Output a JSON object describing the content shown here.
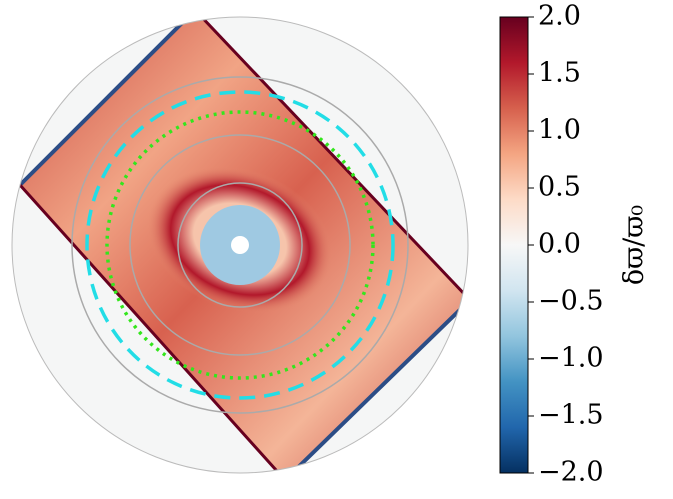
{
  "chart_data": {
    "type": "heatmap",
    "projection": "polar",
    "colormap": "RdBu_r",
    "clim": [
      -2,
      2
    ],
    "cticks": [
      {
        "value": -2,
        "label": "−2.0"
      },
      {
        "value": -1.5,
        "label": "−1.5"
      },
      {
        "value": -1,
        "label": "−1.0"
      },
      {
        "value": -0.5,
        "label": "−0.5"
      },
      {
        "value": 0,
        "label": "0.0"
      },
      {
        "value": 0.5,
        "label": "0.5"
      },
      {
        "value": 1,
        "label": "1.0"
      },
      {
        "value": 1.5,
        "label": "1.5"
      },
      {
        "value": 2,
        "label": "2.0"
      }
    ],
    "colorbar_label": "δϖ/ϖ₀"
  }
}
